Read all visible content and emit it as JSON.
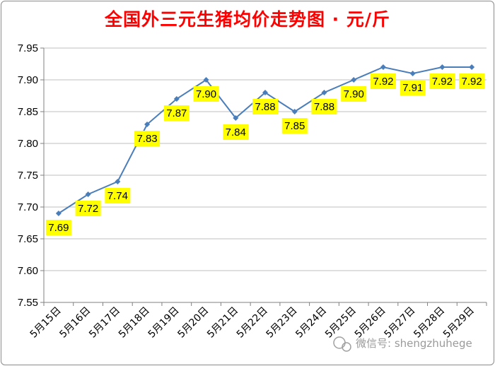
{
  "chart_data": {
    "type": "line",
    "title": "全国外三元生猪均价走势图 · 元/斤",
    "xlabel": "",
    "ylabel": "",
    "categories": [
      "5月15日",
      "5月16日",
      "5月17日",
      "5月18日",
      "5月19日",
      "5月20日",
      "5月21日",
      "5月22日",
      "5月23日",
      "5月24日",
      "5月25日",
      "5月26日",
      "5月27日",
      "5月28日",
      "5月29日"
    ],
    "values": [
      7.69,
      7.72,
      7.74,
      7.83,
      7.87,
      7.9,
      7.84,
      7.88,
      7.85,
      7.88,
      7.9,
      7.92,
      7.91,
      7.92,
      7.92
    ],
    "data_labels": [
      "7.69",
      "7.72",
      "7.74",
      "7.83",
      "7.87",
      "7.90",
      "7.84",
      "7.88",
      "7.85",
      "7.88",
      "7.90",
      "7.92",
      "7.91",
      "7.92",
      "7.92"
    ],
    "ylim": [
      7.55,
      7.95
    ],
    "yticks": [
      "7.55",
      "7.60",
      "7.65",
      "7.70",
      "7.75",
      "7.80",
      "7.85",
      "7.90",
      "7.95"
    ],
    "grid": true,
    "legend": false,
    "colors": {
      "line": "#4a7ebb",
      "marker": "#4a7ebb",
      "label_background": "#ffff00",
      "title": "#ff0000",
      "grid": "#bfbfbf",
      "axis": "#808080"
    }
  },
  "watermark": {
    "text": "微信号: shengzhuhege",
    "icon": "wechat-icon"
  }
}
